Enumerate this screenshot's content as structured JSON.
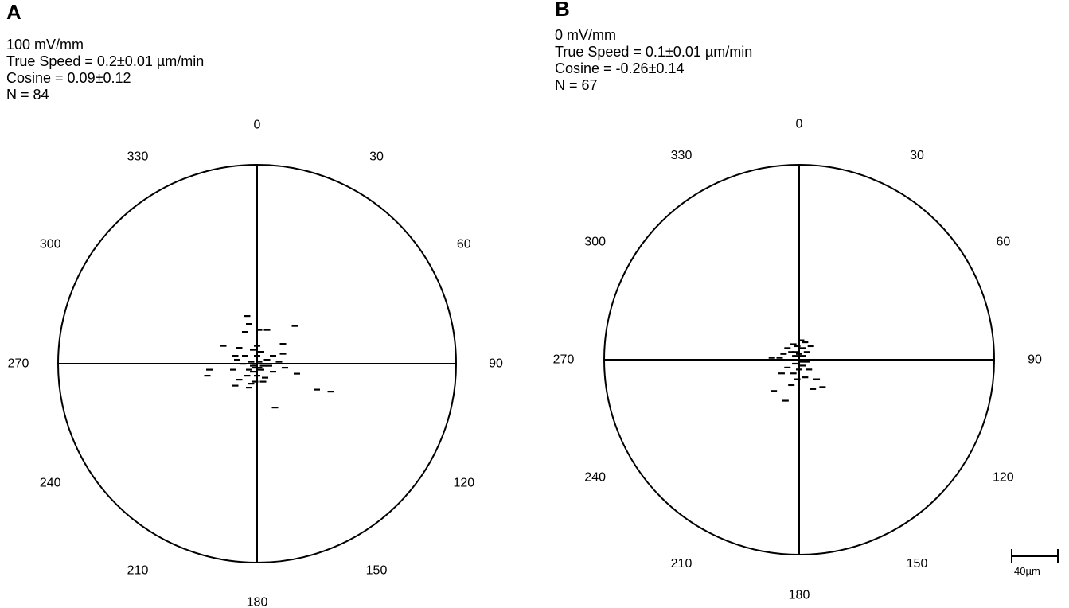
{
  "chart_data": [
    {
      "type": "scatter",
      "subtype": "polar-trajectory-endpoints",
      "panel_label": "A",
      "title": "",
      "info": {
        "field": "100 mV/mm",
        "true_speed": "True Speed = 0.2±0.01 µm/min",
        "cosine": "Cosine = 0.09±0.12",
        "n": "N = 84"
      },
      "angle_labels": [
        "0",
        "30",
        "60",
        "90",
        "120",
        "150",
        "180",
        "210",
        "240",
        "270",
        "300",
        "330"
      ],
      "radius_um": 100,
      "units": "µm",
      "points": [
        {
          "x": -5,
          "y": 24
        },
        {
          "x": -4,
          "y": 20
        },
        {
          "x": 1,
          "y": 17
        },
        {
          "x": 19,
          "y": 19
        },
        {
          "x": -6,
          "y": 16
        },
        {
          "x": 5,
          "y": 17
        },
        {
          "x": -17,
          "y": 9
        },
        {
          "x": -9,
          "y": 8
        },
        {
          "x": 0,
          "y": 9
        },
        {
          "x": 13,
          "y": 10
        },
        {
          "x": -2,
          "y": 7
        },
        {
          "x": 2,
          "y": 6
        },
        {
          "x": -11,
          "y": 4
        },
        {
          "x": -6,
          "y": 4
        },
        {
          "x": 0,
          "y": 4
        },
        {
          "x": 8,
          "y": 4
        },
        {
          "x": 13,
          "y": 5
        },
        {
          "x": 5,
          "y": 2
        },
        {
          "x": -10,
          "y": 2
        },
        {
          "x": -3,
          "y": 1
        },
        {
          "x": 1,
          "y": 1
        },
        {
          "x": 11,
          "y": 1
        },
        {
          "x": -7,
          "y": 0
        },
        {
          "x": -2,
          "y": -1
        },
        {
          "x": 3,
          "y": -1
        },
        {
          "x": 6,
          "y": -1
        },
        {
          "x": -1,
          "y": -2
        },
        {
          "x": 14,
          "y": -2
        },
        {
          "x": -24,
          "y": -3
        },
        {
          "x": -12,
          "y": -3
        },
        {
          "x": -4,
          "y": -3
        },
        {
          "x": 2,
          "y": -3
        },
        {
          "x": 8,
          "y": -4
        },
        {
          "x": 20,
          "y": -5
        },
        {
          "x": -25,
          "y": -6
        },
        {
          "x": -5,
          "y": -6
        },
        {
          "x": 0,
          "y": -6
        },
        {
          "x": 4,
          "y": -7
        },
        {
          "x": -9,
          "y": -8
        },
        {
          "x": -1,
          "y": -9
        },
        {
          "x": -3,
          "y": -10
        },
        {
          "x": 3,
          "y": -9
        },
        {
          "x": -11,
          "y": -11
        },
        {
          "x": -4,
          "y": -12
        },
        {
          "x": 30,
          "y": -13
        },
        {
          "x": 37,
          "y": -14
        },
        {
          "x": 9,
          "y": -22
        },
        {
          "x": -2,
          "y": -4
        },
        {
          "x": 1,
          "y": -2
        },
        {
          "x": -1,
          "y": 0
        }
      ]
    },
    {
      "type": "scatter",
      "subtype": "polar-trajectory-endpoints",
      "panel_label": "B",
      "title": "",
      "info": {
        "field": "0 mV/mm",
        "true_speed": "True Speed = 0.1±0.01 µm/min",
        "cosine": "Cosine = -0.26±0.14",
        "n": "N = 67"
      },
      "angle_labels": [
        "0",
        "30",
        "60",
        "90",
        "120",
        "150",
        "180",
        "210",
        "240",
        "270",
        "300",
        "330"
      ],
      "radius_um": 100,
      "units": "µm",
      "points": [
        {
          "x": 1,
          "y": 10
        },
        {
          "x": 3,
          "y": 9
        },
        {
          "x": -3,
          "y": 8
        },
        {
          "x": 6,
          "y": 7
        },
        {
          "x": -1,
          "y": 7
        },
        {
          "x": -6,
          "y": 6
        },
        {
          "x": 2,
          "y": 6
        },
        {
          "x": -4,
          "y": 4
        },
        {
          "x": 4,
          "y": 4
        },
        {
          "x": -8,
          "y": 3
        },
        {
          "x": 0,
          "y": 3
        },
        {
          "x": -2,
          "y": 2
        },
        {
          "x": 2,
          "y": 2
        },
        {
          "x": -14,
          "y": 1
        },
        {
          "x": -10,
          "y": 1
        },
        {
          "x": -5,
          "y": 0
        },
        {
          "x": -1,
          "y": 0
        },
        {
          "x": 1,
          "y": 0
        },
        {
          "x": 4,
          "y": -1
        },
        {
          "x": -18,
          "y": 0
        },
        {
          "x": 18,
          "y": 0
        },
        {
          "x": -2,
          "y": -2
        },
        {
          "x": 2,
          "y": -3
        },
        {
          "x": -6,
          "y": -4
        },
        {
          "x": 0,
          "y": -5
        },
        {
          "x": 5,
          "y": -5
        },
        {
          "x": -9,
          "y": -7
        },
        {
          "x": -3,
          "y": -7
        },
        {
          "x": 3,
          "y": -9
        },
        {
          "x": -1,
          "y": -10
        },
        {
          "x": 12,
          "y": -14
        },
        {
          "x": 7,
          "y": -15
        },
        {
          "x": -13,
          "y": -16
        },
        {
          "x": -4,
          "y": -13
        },
        {
          "x": -7,
          "y": -21
        },
        {
          "x": 9,
          "y": -10
        },
        {
          "x": -2,
          "y": 4
        },
        {
          "x": 1,
          "y": -1
        }
      ]
    }
  ],
  "scale_bar": {
    "label": "40µm",
    "length_um": 40
  }
}
